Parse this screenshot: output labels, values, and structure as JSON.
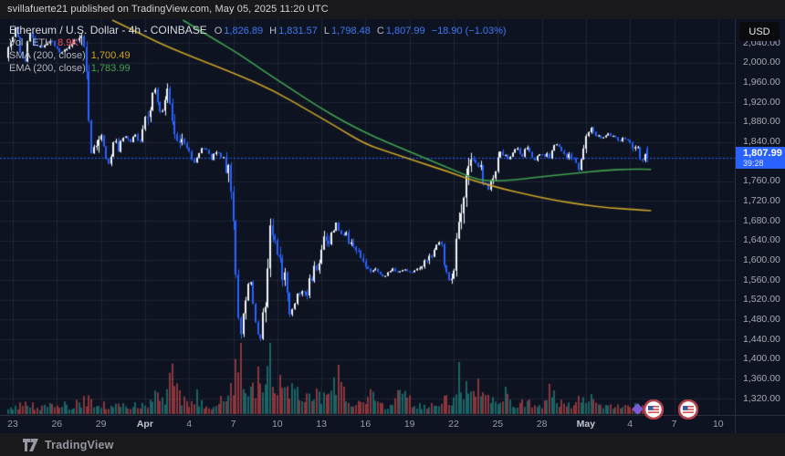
{
  "header": {
    "attribution": "svillafuerte21 published on TradingView.com, May 05, 2025 11:20 UTC"
  },
  "legend": {
    "title": "Ethereum / U.S. Dollar - 4h - COINBASE",
    "o_label": "O",
    "o": "1,826.89",
    "h_label": "H",
    "h": "1,831.57",
    "l_label": "L",
    "l": "1,798.48",
    "c_label": "C",
    "c": "1,807.99",
    "change": "−18.90 (−1.03%)",
    "vol_label": "Vol · ETH",
    "vol_value": "8.9K",
    "sma_label": "SMA (200, close)",
    "sma_value": "1,700.49",
    "ema_label": "EMA (200, close)",
    "ema_value": "1,783.99"
  },
  "axis": {
    "currency": "USD"
  },
  "price_label": {
    "value": "1,807.99",
    "countdown": "39:28"
  },
  "footer": {
    "brand": "TradingView"
  },
  "colors": {
    "chart_bg": "#0e1322",
    "strip_bg": "#19191c",
    "grid": "rgba(160,172,210,0.10)",
    "up_candle": "#f5f7fa",
    "down_candle": "#2962ff",
    "accent_blue": "#2962ff",
    "sma_line": "#c9a227",
    "ema_line": "#3fa34d",
    "vol_up": "rgba(38,166,154,0.55)",
    "vol_down": "rgba(239,83,80,0.55)"
  },
  "chart_data": {
    "type": "candlestick",
    "title": "Ethereum / U.S. Dollar",
    "interval": "4h",
    "exchange": "COINBASE",
    "last_price": 1807.99,
    "last_candle": {
      "open": 1826.89,
      "high": 1831.57,
      "low": 1798.48,
      "close": 1807.99
    },
    "change": -18.9,
    "change_pct": -1.03,
    "volume_display": "8.9K",
    "sma_200_close": 1700.49,
    "ema_200_close": 1783.99,
    "y_axis": {
      "ticks": [
        2040,
        2000,
        1960,
        1920,
        1880,
        1840,
        1760,
        1720,
        1680,
        1640,
        1600,
        1560,
        1520,
        1480,
        1440,
        1400,
        1360,
        1320
      ],
      "units": "USD"
    },
    "x_axis": {
      "ticks": [
        {
          "label": "23",
          "d": 0
        },
        {
          "label": "26",
          "d": 3
        },
        {
          "label": "29",
          "d": 6
        },
        {
          "label": "Apr",
          "d": 9,
          "bold": true
        },
        {
          "label": "4",
          "d": 12
        },
        {
          "label": "7",
          "d": 15
        },
        {
          "label": "10",
          "d": 18
        },
        {
          "label": "13",
          "d": 21
        },
        {
          "label": "16",
          "d": 24
        },
        {
          "label": "19",
          "d": 27
        },
        {
          "label": "22",
          "d": 30
        },
        {
          "label": "25",
          "d": 33
        },
        {
          "label": "28",
          "d": 36
        },
        {
          "label": "May",
          "d": 39,
          "bold": true
        },
        {
          "label": "4",
          "d": 42
        },
        {
          "label": "7",
          "d": 45
        },
        {
          "label": "10",
          "d": 48
        }
      ]
    },
    "price_path": [
      [
        -0.4,
        2010
      ],
      [
        0,
        2040
      ],
      [
        0.3,
        2075
      ],
      [
        0.6,
        2020
      ],
      [
        0.9,
        1996
      ],
      [
        1.2,
        2068
      ],
      [
        1.5,
        2040
      ],
      [
        2,
        2030
      ],
      [
        2.7,
        2046
      ],
      [
        3.3,
        2020
      ],
      [
        4,
        2036
      ],
      [
        4.6,
        2052
      ],
      [
        5,
        2044
      ],
      [
        5.2,
        1940
      ],
      [
        5.35,
        1835
      ],
      [
        5.5,
        1820
      ],
      [
        5.7,
        1806
      ],
      [
        5.9,
        1846
      ],
      [
        6.1,
        1856
      ],
      [
        6.3,
        1826
      ],
      [
        6.5,
        1800
      ],
      [
        6.7,
        1792
      ],
      [
        6.9,
        1838
      ],
      [
        7.1,
        1846
      ],
      [
        7.3,
        1822
      ],
      [
        7.5,
        1846
      ],
      [
        7.8,
        1852
      ],
      [
        8.1,
        1840
      ],
      [
        8.4,
        1858
      ],
      [
        8.7,
        1833
      ],
      [
        9,
        1870
      ],
      [
        9.3,
        1896
      ],
      [
        9.6,
        1932
      ],
      [
        9.8,
        1948
      ],
      [
        10,
        1916
      ],
      [
        10.2,
        1896
      ],
      [
        10.45,
        1930
      ],
      [
        10.6,
        1940
      ],
      [
        10.9,
        1888
      ],
      [
        11.2,
        1850
      ],
      [
        11.5,
        1832
      ],
      [
        11.8,
        1842
      ],
      [
        12.1,
        1815
      ],
      [
        12.4,
        1797
      ],
      [
        12.7,
        1812
      ],
      [
        13,
        1830
      ],
      [
        13.3,
        1824
      ],
      [
        13.6,
        1805
      ],
      [
        13.9,
        1818
      ],
      [
        14.2,
        1812
      ],
      [
        14.5,
        1800
      ],
      [
        14.75,
        1792
      ],
      [
        14.9,
        1760
      ],
      [
        15.1,
        1690
      ],
      [
        15.25,
        1595
      ],
      [
        15.4,
        1502
      ],
      [
        15.55,
        1465
      ],
      [
        15.7,
        1482
      ],
      [
        15.85,
        1495
      ],
      [
        16,
        1520
      ],
      [
        16.15,
        1572
      ],
      [
        16.3,
        1556
      ],
      [
        16.5,
        1492
      ],
      [
        16.7,
        1458
      ],
      [
        16.9,
        1430
      ],
      [
        17.05,
        1480
      ],
      [
        17.2,
        1502
      ],
      [
        17.35,
        1553
      ],
      [
        17.5,
        1645
      ],
      [
        17.65,
        1672
      ],
      [
        17.8,
        1665
      ],
      [
        18,
        1638
      ],
      [
        18.2,
        1600
      ],
      [
        18.4,
        1583
      ],
      [
        18.6,
        1556
      ],
      [
        18.8,
        1520
      ],
      [
        18.95,
        1487
      ],
      [
        19.1,
        1494
      ],
      [
        19.3,
        1516
      ],
      [
        19.5,
        1537
      ],
      [
        19.7,
        1528
      ],
      [
        19.9,
        1546
      ],
      [
        20.1,
        1537
      ],
      [
        20.3,
        1556
      ],
      [
        20.5,
        1575
      ],
      [
        20.7,
        1584
      ],
      [
        20.9,
        1602
      ],
      [
        21.1,
        1630
      ],
      [
        21.3,
        1638
      ],
      [
        21.5,
        1630
      ],
      [
        21.7,
        1648
      ],
      [
        21.9,
        1660
      ],
      [
        22.1,
        1673
      ],
      [
        22.3,
        1657
      ],
      [
        22.5,
        1648
      ],
      [
        22.7,
        1656
      ],
      [
        22.9,
        1638
      ],
      [
        23.1,
        1630
      ],
      [
        23.3,
        1638
      ],
      [
        23.5,
        1620
      ],
      [
        23.7,
        1602
      ],
      [
        23.9,
        1585
      ],
      [
        24.1,
        1592
      ],
      [
        24.4,
        1575
      ],
      [
        24.7,
        1583
      ],
      [
        25,
        1575
      ],
      [
        25.3,
        1566
      ],
      [
        25.6,
        1575
      ],
      [
        25.9,
        1583
      ],
      [
        26.2,
        1575
      ],
      [
        26.5,
        1578
      ],
      [
        26.8,
        1583
      ],
      [
        27.1,
        1575
      ],
      [
        27.4,
        1578
      ],
      [
        27.7,
        1583
      ],
      [
        28,
        1592
      ],
      [
        28.3,
        1602
      ],
      [
        28.6,
        1612
      ],
      [
        28.85,
        1630
      ],
      [
        29.1,
        1638
      ],
      [
        29.3,
        1620
      ],
      [
        29.5,
        1592
      ],
      [
        29.7,
        1565
      ],
      [
        29.85,
        1556
      ],
      [
        30,
        1575
      ],
      [
        30.15,
        1602
      ],
      [
        30.3,
        1660
      ],
      [
        30.5,
        1700
      ],
      [
        30.7,
        1730
      ],
      [
        30.9,
        1758
      ],
      [
        31.1,
        1786
      ],
      [
        31.25,
        1805
      ],
      [
        31.4,
        1814
      ],
      [
        31.6,
        1798
      ],
      [
        31.8,
        1790
      ],
      [
        32,
        1777
      ],
      [
        32.2,
        1758
      ],
      [
        32.4,
        1740
      ],
      [
        32.6,
        1758
      ],
      [
        32.8,
        1777
      ],
      [
        33,
        1795
      ],
      [
        33.2,
        1812
      ],
      [
        33.4,
        1820
      ],
      [
        33.6,
        1814
      ],
      [
        33.8,
        1806
      ],
      [
        34,
        1813
      ],
      [
        34.2,
        1822
      ],
      [
        34.4,
        1828
      ],
      [
        34.6,
        1817
      ],
      [
        34.8,
        1810
      ],
      [
        35,
        1833
      ],
      [
        35.2,
        1822
      ],
      [
        35.4,
        1810
      ],
      [
        35.6,
        1800
      ],
      [
        35.8,
        1810
      ],
      [
        36,
        1817
      ],
      [
        36.2,
        1810
      ],
      [
        36.4,
        1813
      ],
      [
        36.6,
        1806
      ],
      [
        36.8,
        1825
      ],
      [
        37,
        1840
      ],
      [
        37.2,
        1832
      ],
      [
        37.4,
        1822
      ],
      [
        37.6,
        1813
      ],
      [
        37.8,
        1805
      ],
      [
        38,
        1817
      ],
      [
        38.2,
        1810
      ],
      [
        38.4,
        1798
      ],
      [
        38.6,
        1787
      ],
      [
        38.8,
        1805
      ],
      [
        39,
        1832
      ],
      [
        39.2,
        1855
      ],
      [
        39.4,
        1870
      ],
      [
        39.6,
        1858
      ],
      [
        39.8,
        1850
      ],
      [
        40,
        1853
      ],
      [
        40.2,
        1846
      ],
      [
        40.4,
        1853
      ],
      [
        40.6,
        1858
      ],
      [
        40.8,
        1850
      ],
      [
        41,
        1853
      ],
      [
        41.2,
        1846
      ],
      [
        41.4,
        1841
      ],
      [
        41.6,
        1850
      ],
      [
        41.8,
        1841
      ],
      [
        42,
        1842
      ],
      [
        42.2,
        1832
      ],
      [
        42.4,
        1836
      ],
      [
        42.6,
        1828
      ],
      [
        42.85,
        1793
      ],
      [
        43,
        1810
      ],
      [
        43.17,
        1827
      ],
      [
        43.33,
        1808
      ]
    ],
    "sma_path": [
      [
        6.8,
        2086
      ],
      [
        8.4,
        2063
      ],
      [
        10.3,
        2035
      ],
      [
        12.8,
        2005
      ],
      [
        15.3,
        1976
      ],
      [
        17.8,
        1943
      ],
      [
        20.2,
        1902
      ],
      [
        22.1,
        1869
      ],
      [
        24,
        1835
      ],
      [
        25.8,
        1817
      ],
      [
        27.7,
        1798
      ],
      [
        29.6,
        1780
      ],
      [
        31.4,
        1761
      ],
      [
        33.3,
        1745
      ],
      [
        35.2,
        1732
      ],
      [
        37,
        1721
      ],
      [
        38.9,
        1712
      ],
      [
        40.7,
        1706
      ],
      [
        42.3,
        1703
      ],
      [
        43.4,
        1700.5
      ]
    ],
    "ema_path": [
      [
        11.6,
        2086
      ],
      [
        13.4,
        2053
      ],
      [
        15.3,
        2020
      ],
      [
        17.1,
        1983
      ],
      [
        19,
        1946
      ],
      [
        20.9,
        1909
      ],
      [
        22.7,
        1878
      ],
      [
        24.6,
        1850
      ],
      [
        26.5,
        1826
      ],
      [
        28.3,
        1804
      ],
      [
        29.9,
        1784
      ],
      [
        31.1,
        1769
      ],
      [
        32,
        1761
      ],
      [
        33.3,
        1761
      ],
      [
        34.8,
        1765
      ],
      [
        36.4,
        1771
      ],
      [
        38.3,
        1776
      ],
      [
        40.1,
        1782
      ],
      [
        42,
        1785
      ],
      [
        43.4,
        1784
      ]
    ],
    "volume_rel": [
      [
        -0.4,
        11
      ],
      [
        1,
        13
      ],
      [
        2,
        10
      ],
      [
        3,
        16
      ],
      [
        4,
        11
      ],
      [
        5.2,
        24
      ],
      [
        5.5,
        19
      ],
      [
        6,
        13
      ],
      [
        7,
        16
      ],
      [
        8,
        12
      ],
      [
        9,
        13
      ],
      [
        9.7,
        35
      ],
      [
        10.2,
        19
      ],
      [
        10.9,
        56
      ],
      [
        11.5,
        24
      ],
      [
        12,
        16
      ],
      [
        12.5,
        27
      ],
      [
        13,
        13
      ],
      [
        14,
        13
      ],
      [
        14.9,
        40
      ],
      [
        15.1,
        64
      ],
      [
        15.3,
        77
      ],
      [
        15.45,
        100
      ],
      [
        15.6,
        67
      ],
      [
        15.8,
        47
      ],
      [
        16.1,
        37
      ],
      [
        16.5,
        40
      ],
      [
        16.9,
        60
      ],
      [
        17.2,
        40
      ],
      [
        17.55,
        87
      ],
      [
        17.8,
        53
      ],
      [
        18.2,
        40
      ],
      [
        18.6,
        33
      ],
      [
        19,
        37
      ],
      [
        19.4,
        27
      ],
      [
        19.8,
        21
      ],
      [
        20.3,
        24
      ],
      [
        20.6,
        40
      ],
      [
        21,
        27
      ],
      [
        21.5,
        20
      ],
      [
        22.1,
        60
      ],
      [
        22.5,
        29
      ],
      [
        23,
        19
      ],
      [
        23.5,
        21
      ],
      [
        24,
        16
      ],
      [
        24.3,
        32
      ],
      [
        24.8,
        16
      ],
      [
        25.4,
        13
      ],
      [
        26,
        19
      ],
      [
        26.6,
        44
      ],
      [
        27.2,
        16
      ],
      [
        27.8,
        13
      ],
      [
        28.4,
        16
      ],
      [
        29,
        21
      ],
      [
        29.5,
        27
      ],
      [
        29.9,
        24
      ],
      [
        30.4,
        75
      ],
      [
        30.7,
        40
      ],
      [
        31,
        29
      ],
      [
        31.5,
        43
      ],
      [
        31.9,
        33
      ],
      [
        32.4,
        27
      ],
      [
        32.8,
        20
      ],
      [
        33.3,
        24
      ],
      [
        33.6,
        40
      ],
      [
        34,
        16
      ],
      [
        34.5,
        13
      ],
      [
        35,
        24
      ],
      [
        35.5,
        16
      ],
      [
        36,
        13
      ],
      [
        36.6,
        36
      ],
      [
        37,
        19
      ],
      [
        37.5,
        13
      ],
      [
        38,
        16
      ],
      [
        38.4,
        29
      ],
      [
        38.8,
        16
      ],
      [
        39.3,
        31
      ],
      [
        39.7,
        19
      ],
      [
        40.2,
        13
      ],
      [
        40.7,
        16
      ],
      [
        41.2,
        11
      ],
      [
        41.7,
        13
      ],
      [
        42.2,
        11
      ],
      [
        42.7,
        13
      ],
      [
        43.1,
        8
      ],
      [
        43.33,
        7
      ]
    ],
    "event_markers": [
      {
        "d": 43.6,
        "kind": "us-flag"
      },
      {
        "d": 45.95,
        "kind": "us-flag"
      }
    ],
    "event_diamond_d": 42.5
  }
}
